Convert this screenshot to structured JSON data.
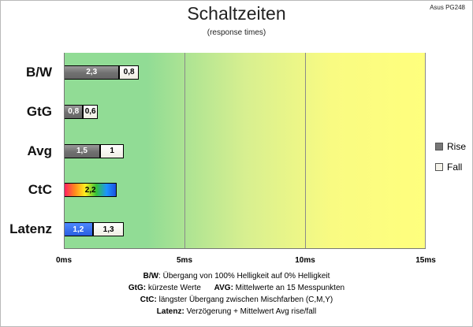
{
  "title": "Schaltzeiten",
  "subtitle": "(response times)",
  "corner_label": "Asus PG248",
  "colors": {
    "rise": "#777777",
    "fall": "#f5f3ea",
    "latency": "#2f63e8",
    "plot_green": "#91dc95",
    "plot_yellow": "#ffff7d"
  },
  "chart_data": {
    "type": "bar",
    "orientation": "horizontal",
    "stacked": true,
    "title": "Schaltzeiten",
    "subtitle": "(response times)",
    "categories": [
      "B/W",
      "GtG",
      "Avg",
      "CtC",
      "Latenz"
    ],
    "series": [
      {
        "name": "Rise",
        "values": [
          2.3,
          0.8,
          1.5,
          null,
          null
        ]
      },
      {
        "name": "Fall",
        "values": [
          0.8,
          0.6,
          1,
          null,
          null
        ]
      }
    ],
    "extra_bars": [
      {
        "category": "CtC",
        "segments": [
          {
            "value": 2.2,
            "label": "2,2",
            "style": "rainbow"
          }
        ]
      },
      {
        "category": "Latenz",
        "segments": [
          {
            "value": 1.2,
            "label": "1,2",
            "style": "blue"
          },
          {
            "value": 1.3,
            "label": "1,3",
            "style": "fall"
          }
        ]
      }
    ],
    "value_labels": {
      "B/W": [
        "2,3",
        "0,8"
      ],
      "GtG": [
        "0,8",
        "0,6"
      ],
      "Avg": [
        "1,5",
        "1"
      ]
    },
    "xlim": [
      0,
      15
    ],
    "x_ticks": [
      0,
      5,
      10,
      15
    ],
    "x_tick_labels": [
      "0ms",
      "5ms",
      "10ms",
      "15ms"
    ],
    "grid": true,
    "legend_position": "right"
  },
  "legend": [
    {
      "label": "Rise",
      "color": "#777777"
    },
    {
      "label": "Fall",
      "color": "#f5f3ea"
    }
  ],
  "footnotes": [
    {
      "key": "B/W",
      "text": ": Übergang von 100% Helligkeit auf 0% Helligkeit"
    },
    {
      "key": "GtG:",
      "text": " kürzeste Werte",
      "key2": "AVG:",
      "text2": " Mittelwerte an 15 Messpunkten"
    },
    {
      "key": "CtC:",
      "text": " längster Übergang zwischen Mischfarben (C,M,Y)"
    },
    {
      "key": "Latenz:",
      "text": " Verzögerung + Mittelwert Avg rise/fall"
    }
  ]
}
